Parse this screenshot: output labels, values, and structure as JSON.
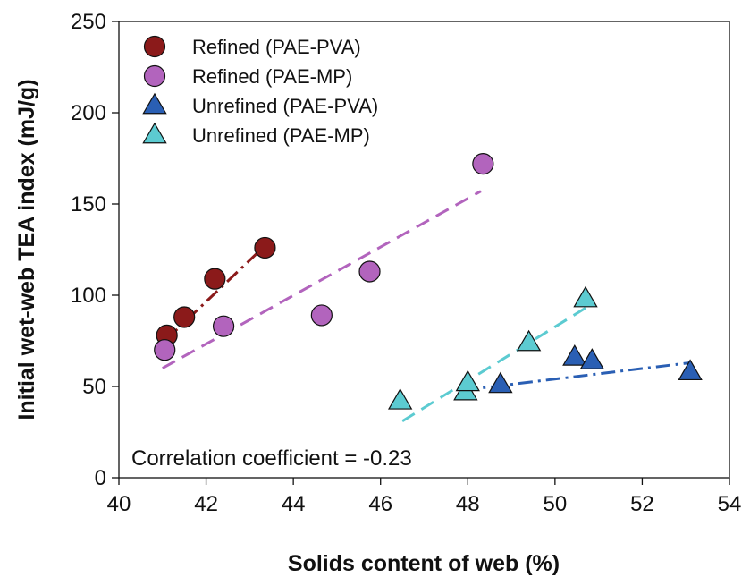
{
  "chart_data": {
    "type": "scatter",
    "title": "",
    "xlabel": "Solids content of web (%)",
    "ylabel": "Initial wet-web TEA index (mJ/g)",
    "xlim": [
      40,
      54
    ],
    "ylim": [
      0,
      250
    ],
    "xticks": [
      40,
      42,
      44,
      46,
      48,
      50,
      52,
      54
    ],
    "yticks": [
      0,
      50,
      100,
      150,
      200,
      250
    ],
    "grid": false,
    "legend_position": "top-left",
    "annotation": "Correlation coefficient = -0.23",
    "series": [
      {
        "name": "Refined (PAE-PVA)",
        "marker": "circle",
        "color": "#8b1a1a",
        "trendline_style": "dash-dot",
        "trendline": [
          [
            41.1,
            76
          ],
          [
            43.3,
            126
          ]
        ],
        "points": [
          [
            41.1,
            78
          ],
          [
            41.5,
            88
          ],
          [
            42.2,
            109
          ],
          [
            43.35,
            126
          ]
        ]
      },
      {
        "name": "Refined (PAE-MP)",
        "marker": "circle",
        "color": "#b264bd",
        "trendline_style": "dash",
        "trendline": [
          [
            41.0,
            60
          ],
          [
            48.3,
            157
          ]
        ],
        "points": [
          [
            41.05,
            70
          ],
          [
            42.4,
            83
          ],
          [
            44.65,
            89
          ],
          [
            45.75,
            113
          ],
          [
            48.35,
            172
          ]
        ]
      },
      {
        "name": "Unrefined (PAE-PVA)",
        "marker": "triangle",
        "color": "#2a5fb4",
        "trendline_style": "dash-dot",
        "trendline": [
          [
            47.9,
            48
          ],
          [
            53.1,
            63
          ]
        ],
        "points": [
          [
            48.75,
            51
          ],
          [
            50.45,
            66
          ],
          [
            50.85,
            64
          ],
          [
            53.1,
            58
          ]
        ]
      },
      {
        "name": "Unrefined (PAE-MP)",
        "marker": "triangle",
        "color": "#5ccbd1",
        "trendline_style": "dash",
        "trendline": [
          [
            46.5,
            31
          ],
          [
            50.7,
            93
          ]
        ],
        "points": [
          [
            46.45,
            42
          ],
          [
            47.95,
            47
          ],
          [
            48.0,
            52
          ],
          [
            49.4,
            74
          ],
          [
            50.7,
            98
          ]
        ]
      }
    ]
  }
}
